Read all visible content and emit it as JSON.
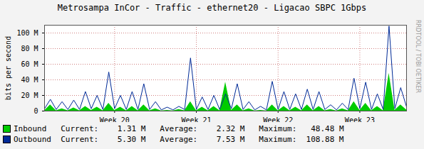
{
  "chart_data": {
    "type": "line",
    "title": "Metrosampa InCor - Traffic - ethernet20 - Ligacao SBPC 1Gbps",
    "y_label": "bits per second",
    "side_text": "RRDTOOL / TOBI OETIKER",
    "x": [
      0,
      0.5,
      1,
      1.5,
      2,
      2.5,
      3,
      3.5,
      4,
      4.5,
      5,
      5.5,
      6,
      6.5,
      7,
      7.5,
      8,
      8.5,
      9,
      9.5,
      10,
      10.5,
      11,
      11.5,
      12,
      12.5,
      13,
      13.5,
      14,
      14.5,
      15,
      15.5,
      16,
      16.5,
      17,
      17.5,
      18,
      18.5,
      19,
      19.5,
      20,
      20.5,
      21,
      21.5,
      22,
      22.5,
      23,
      23.5,
      24,
      24.5,
      25,
      25.5,
      26,
      26.5,
      27,
      27.5,
      28,
      28.5,
      29,
      29.5,
      30,
      30.5,
      31
    ],
    "xlim": [
      0,
      31
    ],
    "xticks": [
      {
        "value": 6,
        "label": "Week 20"
      },
      {
        "value": 13,
        "label": "Week 21"
      },
      {
        "value": 20,
        "label": "Week 22"
      },
      {
        "value": 27,
        "label": "Week 23"
      }
    ],
    "ylim": [
      0,
      110
    ],
    "yticks": [
      0,
      {
        "value": 20,
        "label": "20 M"
      },
      {
        "value": 40,
        "label": "40 M"
      },
      {
        "value": 60,
        "label": "60 M"
      },
      {
        "value": 80,
        "label": "80 M"
      },
      {
        "value": 100,
        "label": "100 M"
      }
    ],
    "grid": true,
    "legend": "bottom",
    "stats_labels": [
      "Current:",
      "Average:",
      "Maximum:"
    ],
    "series": [
      {
        "name": "Inbound",
        "type": "area",
        "color": "#00cc00",
        "values": [
          0.5,
          8,
          0.5,
          3,
          0.5,
          4,
          0.5,
          6,
          0.8,
          5,
          0.5,
          10,
          0.8,
          5,
          0.5,
          6,
          0.5,
          8,
          0.5,
          3,
          0.3,
          1,
          0.3,
          2,
          0.5,
          12,
          0.5,
          5,
          0.5,
          6,
          0.5,
          37,
          0.8,
          8,
          0.5,
          3,
          0.3,
          1,
          0.3,
          8,
          0.5,
          6,
          0.5,
          5,
          0.5,
          8,
          0.5,
          6,
          0.5,
          2,
          0.3,
          3,
          0.5,
          12,
          0.8,
          10,
          0.5,
          6,
          0.5,
          48.48,
          0.8,
          8,
          1.31
        ],
        "stats": [
          {
            "value": 1.31,
            "label": "1.31 M"
          },
          {
            "value": 2.32,
            "label": "2.32 M"
          },
          {
            "value": 48.48,
            "label": "48.48 M"
          }
        ]
      },
      {
        "name": "Outbound",
        "type": "line",
        "color": "#002a97",
        "values": [
          3,
          15,
          2,
          12,
          2,
          14,
          2,
          25,
          3,
          20,
          2,
          50,
          3,
          20,
          2,
          25,
          2,
          35,
          2,
          12,
          1.5,
          5,
          1.5,
          6,
          2,
          68,
          2,
          18,
          2,
          20,
          2,
          22,
          3,
          35,
          2,
          12,
          1.5,
          6,
          1.5,
          38,
          2,
          25,
          2,
          22,
          2,
          28,
          2,
          25,
          2,
          8,
          1.5,
          10,
          2,
          42,
          3,
          37,
          2,
          22,
          2,
          108.88,
          3,
          30,
          5.3
        ],
        "stats": [
          {
            "value": 5.3,
            "label": "5.30 M"
          },
          {
            "value": 7.53,
            "label": "7.53 M"
          },
          {
            "value": 108.88,
            "label": "108.88 M"
          }
        ]
      }
    ]
  }
}
